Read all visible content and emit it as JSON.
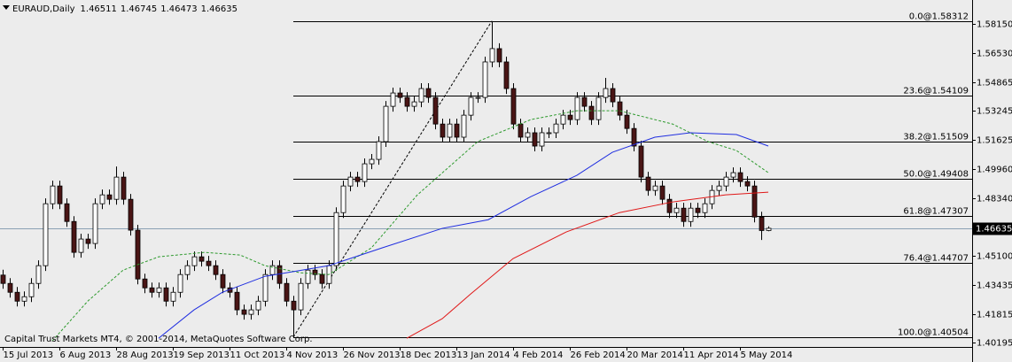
{
  "header": {
    "symbol": "EURAUD,Daily"
  },
  "copyright": "Capital Trust Markets MT4, © 2001-2014, MetaQuotes Software Corp.",
  "chart_data": {
    "type": "candlestick",
    "up_color": "#ffffff",
    "down_color": "#4a1515",
    "xlim": [
      -0.75,
      273.5
    ],
    "ylim": [
      1.3995,
      1.595
    ],
    "xticks": [
      {
        "value": 0,
        "label": "15 Jul 2013"
      },
      {
        "value": 16,
        "label": "6 Aug 2013"
      },
      {
        "value": 32,
        "label": "28 Aug 2013"
      },
      {
        "value": 48,
        "label": "19 Sep 2013"
      },
      {
        "value": 64,
        "label": "11 Oct 2013"
      },
      {
        "value": 80,
        "label": "4 Nov 2013"
      },
      {
        "value": 96,
        "label": "26 Nov 2013"
      },
      {
        "value": 112,
        "label": "18 Dec 2013"
      },
      {
        "value": 128,
        "label": "13 Jan 2014"
      },
      {
        "value": 144,
        "label": "4 Feb 2014"
      },
      {
        "value": 160,
        "label": "26 Feb 2014"
      },
      {
        "value": 176,
        "label": "20 Mar 2014"
      },
      {
        "value": 192,
        "label": "11 Apr 2014"
      },
      {
        "value": 208,
        "label": "5 May 2014"
      }
    ],
    "yticks": [
      {
        "value": 1.5815,
        "label": "1.58150"
      },
      {
        "value": 1.5653,
        "label": "1.56530"
      },
      {
        "value": 1.54865,
        "label": "1.54865"
      },
      {
        "value": 1.53245,
        "label": "1.53245"
      },
      {
        "value": 1.51625,
        "label": "1.51625"
      },
      {
        "value": 1.4996,
        "label": "1.49960"
      },
      {
        "value": 1.4834,
        "label": "1.48340"
      },
      {
        "value": 1.451,
        "label": "1.45100"
      },
      {
        "value": 1.43435,
        "label": "1.43435"
      },
      {
        "value": 1.41815,
        "label": "1.41815"
      },
      {
        "value": 1.40195,
        "label": "1.40195"
      }
    ],
    "x": [
      0,
      2,
      4,
      6,
      8,
      10,
      12,
      14,
      16,
      18,
      20,
      22,
      24,
      26,
      28,
      30,
      32,
      34,
      36,
      38,
      40,
      42,
      44,
      46,
      48,
      50,
      52,
      54,
      56,
      58,
      60,
      62,
      64,
      66,
      68,
      70,
      72,
      74,
      76,
      78,
      80,
      82,
      84,
      86,
      88,
      90,
      92,
      94,
      96,
      98,
      100,
      102,
      104,
      106,
      108,
      110,
      112,
      114,
      116,
      118,
      120,
      122,
      124,
      126,
      128,
      130,
      132,
      134,
      136,
      138,
      140,
      142,
      144,
      146,
      148,
      150,
      152,
      154,
      156,
      158,
      160,
      162,
      164,
      166,
      168,
      170,
      172,
      174,
      176,
      178,
      180,
      182,
      184,
      186,
      188,
      190,
      192,
      194,
      196,
      198,
      200,
      202,
      204,
      206,
      208,
      210,
      212,
      214,
      216
    ],
    "open": [
      1.44,
      1.4353,
      1.4303,
      1.4253,
      1.4278,
      1.4353,
      1.4453,
      1.4802,
      1.4902,
      1.4802,
      1.4702,
      1.4528,
      1.4603,
      1.4578,
      1.4802,
      1.4852,
      1.4827,
      1.4952,
      1.4827,
      1.4653,
      1.4378,
      1.4328,
      1.4303,
      1.4328,
      1.4253,
      1.4303,
      1.4403,
      1.4453,
      1.4503,
      1.4478,
      1.4453,
      1.4403,
      1.4328,
      1.4303,
      1.4204,
      1.4179,
      1.4204,
      1.4253,
      1.4403,
      1.4453,
      1.4353,
      1.4253,
      1.4204,
      1.4353,
      1.4428,
      1.4403,
      1.4353,
      1.4453,
      1.4752,
      1.4902,
      1.4952,
      1.4927,
      1.5027,
      1.5052,
      1.5152,
      1.5351,
      1.5426,
      1.5401,
      1.5351,
      1.5376,
      1.5451,
      1.5401,
      1.5251,
      1.5177,
      1.5251,
      1.5177,
      1.5301,
      1.5401,
      1.5401,
      1.5601,
      1.5676,
      1.5601,
      1.5451,
      1.5251,
      1.5177,
      1.5202,
      1.5127,
      1.5202,
      1.5202,
      1.5251,
      1.5301,
      1.5276,
      1.5401,
      1.5351,
      1.5276,
      1.5401,
      1.5451,
      1.5376,
      1.5301,
      1.5226,
      1.5127,
      1.4952,
      1.4877,
      1.4902,
      1.4827,
      1.4752,
      1.4777,
      1.4702,
      1.4777,
      1.4752,
      1.4802,
      1.4877,
      1.4902,
      1.4952,
      1.4977,
      1.4927,
      1.4902,
      1.4727,
      1.46511
    ],
    "high": [
      1.443,
      1.4383,
      1.4333,
      1.4308,
      1.4383,
      1.4483,
      1.4832,
      1.4932,
      1.4932,
      1.4832,
      1.4732,
      1.4633,
      1.4633,
      1.4832,
      1.4882,
      1.4882,
      1.5012,
      1.4982,
      1.4857,
      1.4683,
      1.4408,
      1.4358,
      1.4358,
      1.4358,
      1.4333,
      1.4433,
      1.4483,
      1.4533,
      1.4533,
      1.4508,
      1.4483,
      1.4433,
      1.4358,
      1.4333,
      1.4234,
      1.4234,
      1.4283,
      1.4433,
      1.4483,
      1.4483,
      1.4383,
      1.4283,
      1.4383,
      1.4458,
      1.4458,
      1.4433,
      1.4483,
      1.4782,
      1.4932,
      1.4982,
      1.4982,
      1.5057,
      1.5082,
      1.5182,
      1.5381,
      1.5456,
      1.5456,
      1.5431,
      1.5406,
      1.5481,
      1.5481,
      1.5431,
      1.5281,
      1.5281,
      1.5281,
      1.5331,
      1.5431,
      1.5431,
      1.5631,
      1.58312,
      1.5706,
      1.5631,
      1.5481,
      1.5281,
      1.5232,
      1.5232,
      1.5232,
      1.5232,
      1.5281,
      1.5331,
      1.5331,
      1.5431,
      1.5431,
      1.5381,
      1.5431,
      1.5511,
      1.5481,
      1.5406,
      1.5331,
      1.5256,
      1.5157,
      1.4982,
      1.4932,
      1.4932,
      1.4857,
      1.4807,
      1.4807,
      1.4807,
      1.4807,
      1.4832,
      1.4907,
      1.4932,
      1.4982,
      1.5007,
      1.5007,
      1.4957,
      1.4932,
      1.4757,
      1.46745
    ],
    "low": [
      1.4323,
      1.4273,
      1.4223,
      1.4223,
      1.4248,
      1.4323,
      1.4423,
      1.4772,
      1.4772,
      1.4672,
      1.4498,
      1.4498,
      1.4548,
      1.4548,
      1.4772,
      1.4797,
      1.4797,
      1.4797,
      1.4623,
      1.4348,
      1.4298,
      1.4273,
      1.4273,
      1.4223,
      1.4223,
      1.4273,
      1.4373,
      1.4423,
      1.4448,
      1.4423,
      1.4373,
      1.4298,
      1.4273,
      1.4174,
      1.4149,
      1.4149,
      1.4174,
      1.4223,
      1.4373,
      1.4323,
      1.4223,
      1.40504,
      1.4174,
      1.4323,
      1.4373,
      1.4323,
      1.4323,
      1.4423,
      1.4722,
      1.4872,
      1.4897,
      1.4897,
      1.4997,
      1.5022,
      1.5122,
      1.5321,
      1.5371,
      1.5321,
      1.5321,
      1.5346,
      1.5371,
      1.5221,
      1.5147,
      1.5147,
      1.5147,
      1.5147,
      1.5271,
      1.5371,
      1.5371,
      1.5571,
      1.5571,
      1.5421,
      1.5221,
      1.5147,
      1.5147,
      1.5097,
      1.5097,
      1.5172,
      1.5172,
      1.5221,
      1.5246,
      1.5246,
      1.5321,
      1.5246,
      1.5246,
      1.5371,
      1.5346,
      1.5271,
      1.5196,
      1.5097,
      1.4922,
      1.4847,
      1.4847,
      1.4797,
      1.4722,
      1.4722,
      1.4672,
      1.4672,
      1.4722,
      1.4722,
      1.4772,
      1.4847,
      1.4872,
      1.4922,
      1.4897,
      1.4872,
      1.4697,
      1.4598,
      1.46473
    ],
    "close": [
      1.4353,
      1.4303,
      1.4253,
      1.4278,
      1.4353,
      1.4453,
      1.4802,
      1.4902,
      1.4802,
      1.4702,
      1.4528,
      1.4603,
      1.4578,
      1.4802,
      1.4852,
      1.4827,
      1.4952,
      1.4827,
      1.4653,
      1.4378,
      1.4328,
      1.4303,
      1.4328,
      1.4253,
      1.4303,
      1.4403,
      1.4453,
      1.4503,
      1.4478,
      1.4453,
      1.4403,
      1.4328,
      1.4303,
      1.4204,
      1.4179,
      1.4204,
      1.4253,
      1.4403,
      1.4453,
      1.4353,
      1.4253,
      1.4204,
      1.4353,
      1.4428,
      1.4403,
      1.4353,
      1.4453,
      1.4752,
      1.4902,
      1.4952,
      1.4927,
      1.5027,
      1.5052,
      1.5152,
      1.5351,
      1.5426,
      1.5401,
      1.5351,
      1.5376,
      1.5451,
      1.5401,
      1.5251,
      1.5177,
      1.5251,
      1.5177,
      1.5301,
      1.5401,
      1.5401,
      1.5601,
      1.5676,
      1.5601,
      1.5451,
      1.5251,
      1.5177,
      1.5202,
      1.5127,
      1.5202,
      1.5202,
      1.5251,
      1.5301,
      1.5276,
      1.5401,
      1.5351,
      1.5276,
      1.5401,
      1.5451,
      1.5376,
      1.5301,
      1.5226,
      1.5127,
      1.4952,
      1.4877,
      1.4902,
      1.4827,
      1.4752,
      1.4777,
      1.4702,
      1.4777,
      1.4752,
      1.4802,
      1.4877,
      1.4902,
      1.4952,
      1.4977,
      1.4927,
      1.4902,
      1.4727,
      1.4651,
      1.46635
    ],
    "series": [
      {
        "color": "#2e9a2e",
        "dash": true,
        "x": [
          14,
          24,
          34,
          44,
          57,
          67,
          74,
          84,
          92,
          104,
          117,
          134,
          149,
          162,
          174,
          189,
          199,
          207,
          216
        ],
        "values": [
          1.4029,
          1.4253,
          1.4428,
          1.4503,
          1.4528,
          1.4513,
          1.4453,
          1.4413,
          1.4403,
          1.4553,
          1.4852,
          1.5152,
          1.5276,
          1.5326,
          1.5326,
          1.5251,
          1.5152,
          1.5102,
          1.4977
        ]
      },
      {
        "color": "#1f2ee0",
        "dash": false,
        "x": [
          44,
          54,
          62,
          74,
          92,
          107,
          124,
          137,
          149,
          162,
          172,
          184,
          194,
          207,
          216
        ],
        "values": [
          1.4044,
          1.4204,
          1.4303,
          1.4393,
          1.4453,
          1.4553,
          1.4663,
          1.4712,
          1.4842,
          1.4962,
          1.5092,
          1.5177,
          1.5202,
          1.5192,
          1.5127
        ]
      },
      {
        "color": "#e01818",
        "dash": false,
        "x": [
          114,
          124,
          132,
          144,
          159,
          174,
          189,
          204,
          216
        ],
        "values": [
          1.4044,
          1.4154,
          1.4293,
          1.4493,
          1.4643,
          1.4752,
          1.4812,
          1.4852,
          1.4867
        ]
      }
    ],
    "fib_levels": [
      {
        "value": 1.58312,
        "label": "0.0@1.58312"
      },
      {
        "value": 1.54109,
        "label": "23.6@1.54109"
      },
      {
        "value": 1.51509,
        "label": "38.2@1.51509"
      },
      {
        "value": 1.49408,
        "label": "50.0@1.49408"
      },
      {
        "value": 1.47307,
        "label": "61.8@1.47307"
      },
      {
        "value": 1.44707,
        "label": "76.4@1.44707"
      },
      {
        "value": 1.40504,
        "label": "100.0@1.40504"
      }
    ]
  }
}
